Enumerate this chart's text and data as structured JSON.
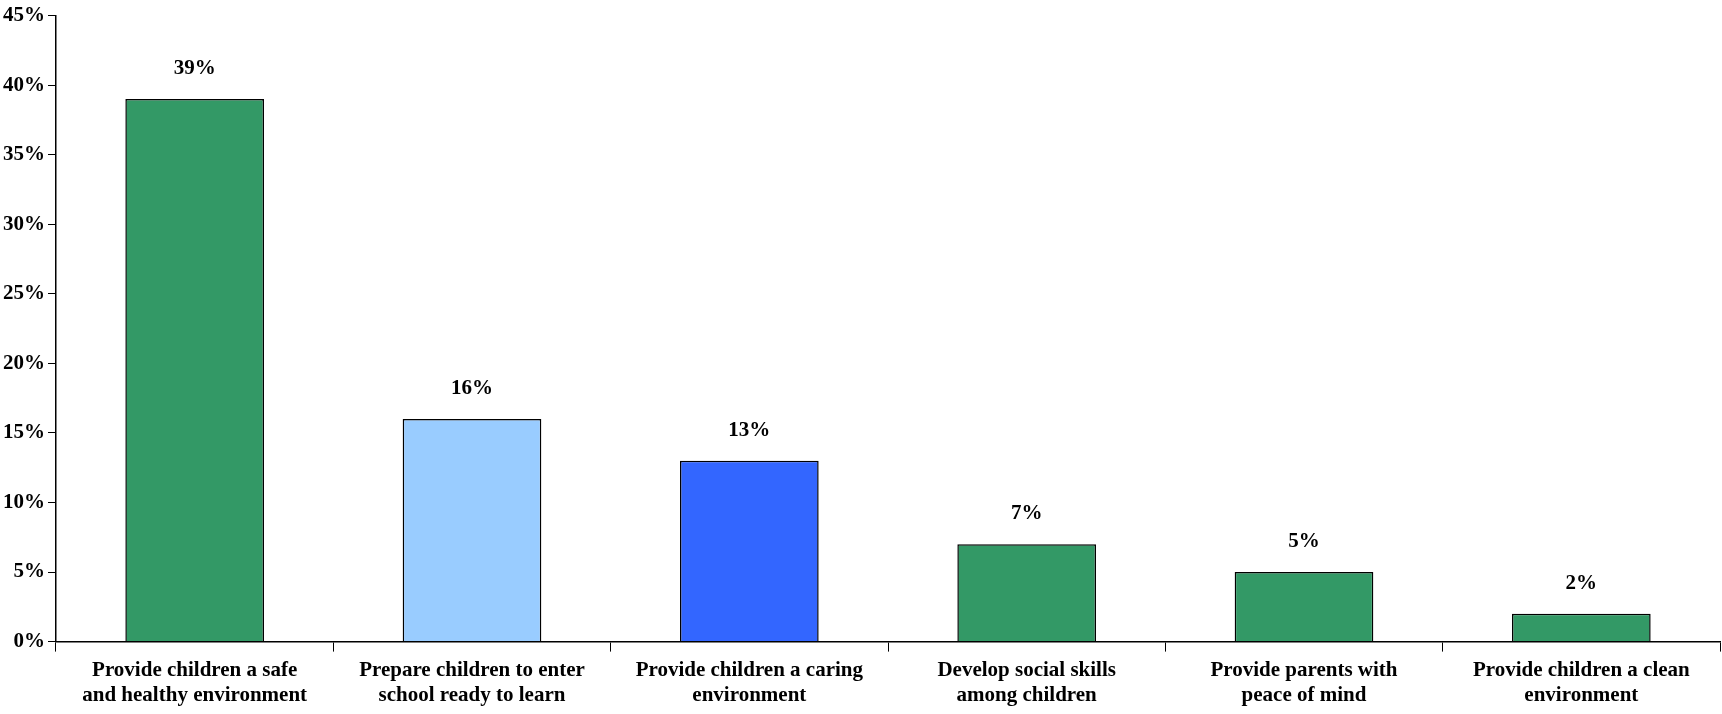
{
  "chart_data": {
    "type": "bar",
    "categories": [
      "Provide children a safe and healthy environment",
      "Prepare children to enter school ready to learn",
      "Provide children a caring environment",
      "Develop social skills among children",
      "Provide parents with peace of mind",
      "Provide children a clean environment"
    ],
    "values": [
      39,
      16,
      13,
      7,
      5,
      2
    ],
    "colors": [
      "#339966",
      "#99ccff",
      "#3366ff",
      "#339966",
      "#339966",
      "#339966"
    ],
    "value_labels": [
      "39%",
      "16%",
      "13%",
      "7%",
      "5%",
      "2%"
    ],
    "ylim": [
      0,
      45
    ],
    "yticks": [
      {
        "value": 0,
        "label": "0%"
      },
      {
        "value": 5,
        "label": "5%"
      },
      {
        "value": 10,
        "label": "10%"
      },
      {
        "value": 15,
        "label": "15%"
      },
      {
        "value": 20,
        "label": "20%"
      },
      {
        "value": 25,
        "label": "25%"
      },
      {
        "value": 30,
        "label": "30%"
      },
      {
        "value": 35,
        "label": "35%"
      },
      {
        "value": 40,
        "label": "40%"
      },
      {
        "value": 45,
        "label": "45%"
      }
    ],
    "grid": false,
    "legend": false
  }
}
